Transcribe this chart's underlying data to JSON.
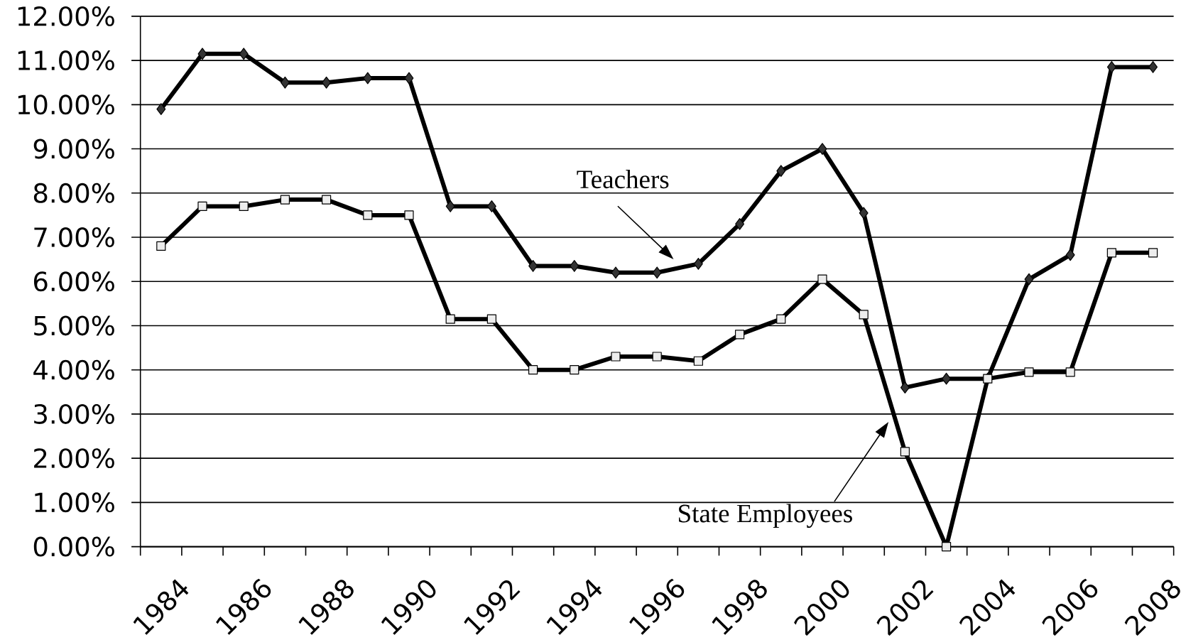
{
  "chart_data": {
    "type": "line",
    "categories": [
      "1984",
      null,
      "1986",
      null,
      "1988",
      null,
      "1990",
      null,
      "1992",
      null,
      "1994",
      null,
      "1996",
      null,
      "1998",
      null,
      "2000",
      null,
      "2002",
      null,
      "2004",
      null,
      "2006",
      null,
      "2008"
    ],
    "ylim": [
      0,
      12
    ],
    "yticks": [
      {
        "value": 0,
        "label": "0.00%"
      },
      {
        "value": 1,
        "label": "1.00%"
      },
      {
        "value": 2,
        "label": "2.00%"
      },
      {
        "value": 3,
        "label": "3.00%"
      },
      {
        "value": 4,
        "label": "4.00%"
      },
      {
        "value": 5,
        "label": "5.00%"
      },
      {
        "value": 6,
        "label": "6.00%"
      },
      {
        "value": 7,
        "label": "7.00%"
      },
      {
        "value": 8,
        "label": "8.00%"
      },
      {
        "value": 9,
        "label": "9.00%"
      },
      {
        "value": 10,
        "label": "10.00%"
      },
      {
        "value": 11,
        "label": "11.00%"
      },
      {
        "value": 12,
        "label": "12.00%"
      }
    ],
    "grid": "y",
    "line_style": "solid",
    "series": [
      {
        "name": "Teachers",
        "color": "#000000",
        "marker": "diamond",
        "values": [
          9.9,
          11.15,
          11.15,
          10.5,
          10.5,
          10.6,
          10.6,
          7.7,
          7.7,
          6.35,
          6.35,
          6.2,
          6.2,
          6.4,
          7.3,
          8.5,
          9.0,
          7.55,
          3.6,
          3.8,
          3.8,
          6.05,
          6.6,
          10.85,
          10.85
        ]
      },
      {
        "name": "State Employees",
        "color": "#000000",
        "marker": "square",
        "values": [
          6.8,
          7.7,
          7.7,
          7.85,
          7.85,
          7.5,
          7.5,
          5.15,
          5.15,
          4.0,
          4.0,
          4.3,
          4.3,
          4.2,
          4.8,
          5.15,
          6.05,
          5.25,
          2.15,
          0,
          3.8,
          3.95,
          3.95,
          6.65,
          6.65
        ]
      }
    ]
  }
}
